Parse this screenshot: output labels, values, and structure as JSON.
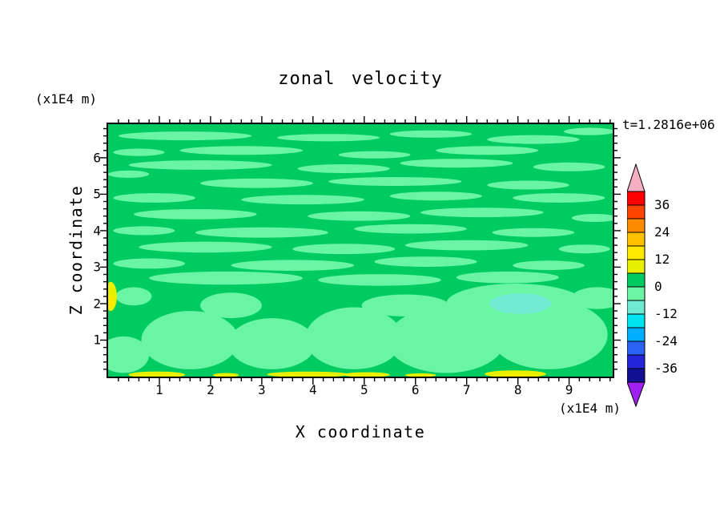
{
  "chart": {
    "title": "zonal velocity",
    "time_label": "t=1.2816e+06",
    "xlabel": "X coordinate",
    "ylabel": "Z coordinate",
    "x_units": "(x1E4 m)",
    "y_units": "(x1E4 m)"
  },
  "chart_data": {
    "type": "heatmap",
    "subtype": "filled-contour",
    "title": "zonal velocity",
    "xlabel": "X coordinate",
    "ylabel": "Z coordinate",
    "x_units": "(x1E4 m)",
    "y_units": "(x1E4 m)",
    "time_label": "t=1.2816e+06",
    "x_range": [
      0,
      9.85
    ],
    "z_range": [
      0,
      6.92
    ],
    "x_ticks": [
      1,
      2,
      3,
      4,
      5,
      6,
      7,
      8,
      9
    ],
    "z_ticks": [
      1,
      2,
      3,
      4,
      5,
      6
    ],
    "minor_tick_step": 0.2,
    "grid": false,
    "legend_position": "right-colorbar",
    "colorbar": {
      "max": 42,
      "band_step": 6,
      "tick_labels": [
        36,
        24,
        12,
        0,
        -12,
        -24,
        -36
      ],
      "over_color": "#F5AFC3",
      "under_color": "#A020F0",
      "bands_top_to_bottom": [
        "#FF0000",
        "#FF4500",
        "#FF8C00",
        "#FFC000",
        "#FFE800",
        "#E8F000",
        "#00CB61",
        "#69F5A4",
        "#6FE9D2",
        "#00E4F0",
        "#00AEFF",
        "#2B64F5",
        "#2424D8",
        "#101090"
      ]
    },
    "background_band": "0..6",
    "palette": {
      "0..6": "#00CB61",
      "-6..0": "#69F5A4",
      "-12..-6": "#6FE9D2",
      "6..12": "#E8F000",
      "12..18": "#FFE800"
    },
    "field_summary": "Zonal velocity nearly everywhere between -6 and 6; thin alternating streaks of the -6..0 band in the upper half, broad -6..0 blobs below z=2, a -12..-6 patch near (x=8, z=2), and weak positive (6..18) streaks along the bottom boundary and at the left wall near z=2.",
    "features": [
      [
        1.5,
        6.6,
        1.3,
        0.12,
        "-6..0"
      ],
      [
        4.3,
        6.55,
        1.0,
        0.1,
        "-6..0"
      ],
      [
        6.3,
        6.65,
        0.8,
        0.1,
        "-6..0"
      ],
      [
        8.3,
        6.5,
        0.9,
        0.12,
        "-6..0"
      ],
      [
        9.4,
        6.72,
        0.5,
        0.1,
        "-6..0"
      ],
      [
        0.6,
        6.15,
        0.5,
        0.1,
        "-6..0"
      ],
      [
        2.6,
        6.2,
        1.2,
        0.12,
        "-6..0"
      ],
      [
        5.2,
        6.08,
        0.7,
        0.1,
        "-6..0"
      ],
      [
        7.4,
        6.2,
        1.0,
        0.12,
        "-6..0"
      ],
      [
        1.8,
        5.8,
        1.4,
        0.13,
        "-6..0"
      ],
      [
        4.6,
        5.7,
        0.9,
        0.12,
        "-6..0"
      ],
      [
        6.8,
        5.85,
        1.1,
        0.12,
        "-6..0"
      ],
      [
        9.0,
        5.75,
        0.7,
        0.12,
        "-6..0"
      ],
      [
        0.4,
        5.55,
        0.4,
        0.1,
        "-6..0"
      ],
      [
        2.9,
        5.3,
        1.1,
        0.13,
        "-6..0"
      ],
      [
        5.6,
        5.35,
        1.3,
        0.12,
        "-6..0"
      ],
      [
        8.2,
        5.25,
        0.8,
        0.12,
        "-6..0"
      ],
      [
        0.9,
        4.9,
        0.8,
        0.13,
        "-6..0"
      ],
      [
        3.8,
        4.85,
        1.2,
        0.13,
        "-6..0"
      ],
      [
        6.4,
        4.95,
        0.9,
        0.12,
        "-6..0"
      ],
      [
        8.8,
        4.9,
        0.9,
        0.13,
        "-6..0"
      ],
      [
        1.7,
        4.45,
        1.2,
        0.14,
        "-6..0"
      ],
      [
        4.9,
        4.4,
        1.0,
        0.13,
        "-6..0"
      ],
      [
        7.3,
        4.5,
        1.2,
        0.13,
        "-6..0"
      ],
      [
        9.5,
        4.35,
        0.45,
        0.11,
        "-6..0"
      ],
      [
        0.7,
        4.0,
        0.6,
        0.12,
        "-6..0"
      ],
      [
        3.0,
        3.95,
        1.3,
        0.14,
        "-6..0"
      ],
      [
        5.9,
        4.05,
        1.1,
        0.13,
        "-6..0"
      ],
      [
        8.3,
        3.95,
        0.8,
        0.12,
        "-6..0"
      ],
      [
        1.9,
        3.55,
        1.3,
        0.15,
        "-6..0"
      ],
      [
        4.6,
        3.5,
        1.0,
        0.14,
        "-6..0"
      ],
      [
        7.0,
        3.6,
        1.2,
        0.14,
        "-6..0"
      ],
      [
        9.3,
        3.5,
        0.5,
        0.12,
        "-6..0"
      ],
      [
        0.8,
        3.1,
        0.7,
        0.14,
        "-6..0"
      ],
      [
        3.6,
        3.05,
        1.2,
        0.15,
        "-6..0"
      ],
      [
        6.2,
        3.15,
        1.0,
        0.14,
        "-6..0"
      ],
      [
        8.6,
        3.05,
        0.7,
        0.13,
        "-6..0"
      ],
      [
        2.3,
        2.7,
        1.5,
        0.18,
        "-6..0"
      ],
      [
        5.3,
        2.65,
        1.2,
        0.16,
        "-6..0"
      ],
      [
        7.8,
        2.72,
        1.0,
        0.16,
        "-6..0"
      ],
      [
        0.3,
        0.6,
        0.5,
        0.5,
        "-6..0"
      ],
      [
        1.6,
        1.0,
        0.95,
        0.8,
        "-6..0"
      ],
      [
        3.2,
        0.9,
        0.85,
        0.7,
        "-6..0"
      ],
      [
        4.8,
        1.05,
        0.95,
        0.85,
        "-6..0"
      ],
      [
        6.6,
        1.0,
        1.15,
        0.9,
        "-6..0"
      ],
      [
        8.6,
        1.15,
        1.15,
        0.95,
        "-6..0"
      ],
      [
        2.4,
        1.95,
        0.6,
        0.35,
        "-6..0"
      ],
      [
        5.8,
        1.95,
        0.85,
        0.3,
        "-6..0"
      ],
      [
        7.95,
        2.0,
        1.35,
        0.55,
        "-6..0"
      ],
      [
        9.55,
        2.15,
        0.5,
        0.3,
        "-6..0"
      ],
      [
        0.5,
        2.2,
        0.35,
        0.25,
        "-6..0"
      ],
      [
        8.05,
        2.0,
        0.6,
        0.28,
        "-12..-6"
      ],
      [
        0.95,
        0.05,
        0.55,
        0.09,
        "6..12"
      ],
      [
        2.3,
        0.04,
        0.25,
        0.06,
        "6..12"
      ],
      [
        3.9,
        0.06,
        0.8,
        0.08,
        "6..12"
      ],
      [
        5.05,
        0.05,
        0.45,
        0.07,
        "6..12"
      ],
      [
        6.1,
        0.04,
        0.3,
        0.05,
        "6..12"
      ],
      [
        7.95,
        0.07,
        0.6,
        0.1,
        "6..12"
      ],
      [
        0.05,
        2.2,
        0.12,
        0.4,
        "6..12"
      ],
      [
        7.95,
        0.02,
        0.25,
        0.04,
        "12..18"
      ],
      [
        0.04,
        2.05,
        0.07,
        0.16,
        "12..18"
      ]
    ]
  }
}
